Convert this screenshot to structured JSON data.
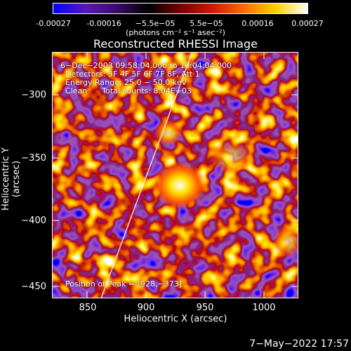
{
  "colorbar": {
    "ticks": [
      "-0.00027",
      "-0.00016",
      "−5.5e−05",
      "5.5e−05",
      "0.00016",
      "0.00027"
    ],
    "unit": "(photons cm⁻² s⁻¹ asec⁻²)",
    "colors": [
      "#0000ff",
      "#5a16ba",
      "#3b0a6a",
      "#000000",
      "#7a0000",
      "#cc1a00",
      "#ff6a00",
      "#ffd000",
      "#ffffff"
    ]
  },
  "title": "Reconstructed RHESSI Image",
  "annotation": {
    "line1": "6−Dec−2003 09:58:04.000 to 10:04:04.000",
    "line2": "Detectors: 3F 4F 5F 6F 7F 8F, Att 1",
    "line3": "Energy Range: 25.0 − 50.0 keV",
    "line4": "Clean      Total counts: 8.04E+03",
    "peak": "Position of Peak = [928,−373]"
  },
  "axes": {
    "xlabel": "Heliocentric X (arcsec)",
    "ylabel": "Heliocentric Y (arcsec)",
    "xticks": [
      "850",
      "900",
      "950",
      "1000"
    ],
    "yticks": [
      "−300",
      "−350",
      "−400",
      "−450"
    ]
  },
  "footer_date": "7−May−2022 17:57"
}
